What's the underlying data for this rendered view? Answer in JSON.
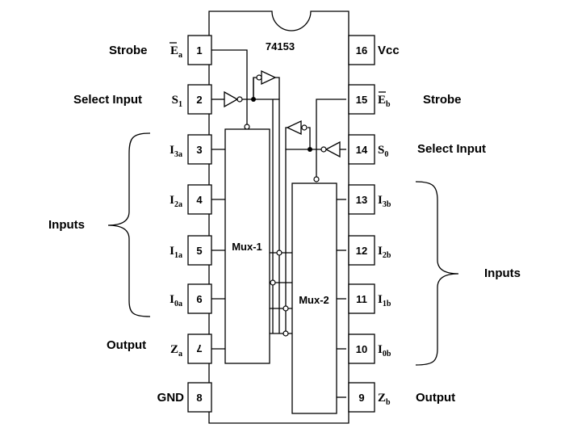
{
  "chip": {
    "part_number": "74153"
  },
  "mux1": {
    "label": "Mux-1"
  },
  "mux2": {
    "label": "Mux-2"
  },
  "left_pins": [
    {
      "num": "1",
      "name": "E",
      "sub": "a",
      "overbar": true
    },
    {
      "num": "2",
      "name": "S",
      "sub": "1",
      "overbar": false
    },
    {
      "num": "3",
      "name": "I",
      "sub": "3a",
      "overbar": false
    },
    {
      "num": "4",
      "name": "I",
      "sub": "2a",
      "overbar": false
    },
    {
      "num": "5",
      "name": "I",
      "sub": "1a",
      "overbar": false
    },
    {
      "num": "6",
      "name": "I",
      "sub": "0a",
      "overbar": false
    },
    {
      "num": "7",
      "name": "Z",
      "sub": "a",
      "overbar": false
    },
    {
      "num": "8",
      "name": "GND",
      "sub": "",
      "overbar": false
    }
  ],
  "right_pins": [
    {
      "num": "16",
      "name": "Vcc",
      "sub": "",
      "overbar": false
    },
    {
      "num": "15",
      "name": "E",
      "sub": "b",
      "overbar": true
    },
    {
      "num": "14",
      "name": "S",
      "sub": "0",
      "overbar": false
    },
    {
      "num": "13",
      "name": "I",
      "sub": "3b",
      "overbar": false
    },
    {
      "num": "12",
      "name": "I",
      "sub": "2b",
      "overbar": false
    },
    {
      "num": "11",
      "name": "I",
      "sub": "1b",
      "overbar": false
    },
    {
      "num": "10",
      "name": "I",
      "sub": "0b",
      "overbar": false
    },
    {
      "num": "9",
      "name": "Z",
      "sub": "b",
      "overbar": false
    }
  ],
  "labels": {
    "strobe_left": "Strobe",
    "select_left": "Select Input",
    "inputs_left": "Inputs",
    "output_left": "Output",
    "strobe_right": "Strobe",
    "select_right": "Select Input",
    "inputs_right": "Inputs",
    "output_right": "Output"
  }
}
